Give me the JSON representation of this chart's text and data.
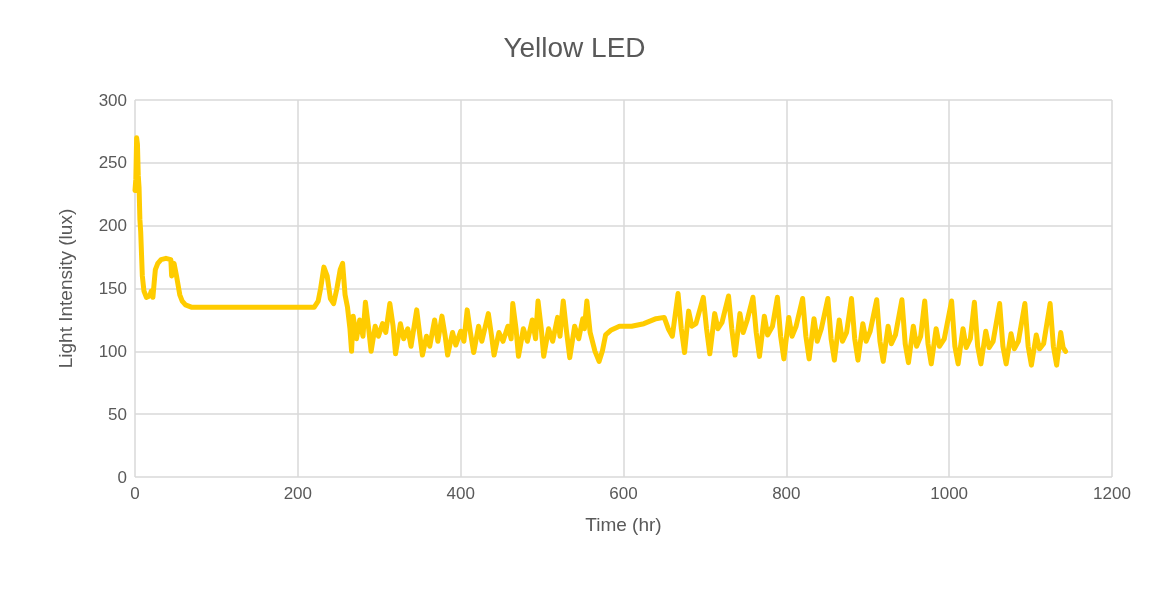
{
  "chart_data": {
    "type": "line",
    "title": "Yellow LED",
    "xlabel": "Time (hr)",
    "ylabel": "Light Intensity (lux)",
    "x": [
      0,
      1,
      2,
      3,
      4,
      5,
      6,
      7,
      9,
      11,
      14,
      18,
      20,
      22,
      24,
      25,
      28,
      32,
      38,
      44,
      45,
      48,
      51,
      55,
      58,
      62,
      70,
      220,
      225,
      228,
      232,
      236,
      240,
      244,
      248,
      252,
      255,
      258,
      261,
      264,
      266,
      268,
      272,
      276,
      280,
      283,
      287,
      290,
      295,
      299,
      304,
      308,
      313,
      317,
      320,
      326,
      330,
      335,
      339,
      346,
      350,
      353,
      358,
      362,
      368,
      372,
      377,
      381,
      384,
      390,
      394,
      400,
      404,
      408,
      412,
      416,
      422,
      426,
      434,
      438,
      441,
      447,
      452,
      458,
      462,
      464,
      468,
      471,
      477,
      482,
      488,
      492,
      495,
      499,
      502,
      508,
      513,
      519,
      522,
      526,
      530,
      534,
      540,
      545,
      550,
      552,
      555,
      559,
      565,
      570,
      574,
      578,
      585,
      595,
      610,
      625,
      640,
      650,
      655,
      660,
      667,
      671,
      675,
      680,
      684,
      689,
      698,
      702,
      706,
      712,
      716,
      721,
      729,
      733,
      737,
      743,
      747,
      752,
      759,
      763,
      767,
      773,
      777,
      783,
      789,
      793,
      797,
      803,
      807,
      812,
      820,
      824,
      828,
      834,
      838,
      843,
      851,
      855,
      859,
      865,
      869,
      874,
      880,
      884,
      888,
      894,
      898,
      903,
      911,
      915,
      919,
      925,
      929,
      934,
      942,
      946,
      950,
      956,
      960,
      965,
      970,
      974,
      978,
      984,
      988,
      994,
      1003,
      1007,
      1011,
      1017,
      1021,
      1026,
      1031,
      1035,
      1039,
      1045,
      1049,
      1054,
      1062,
      1066,
      1070,
      1076,
      1080,
      1085,
      1093,
      1097,
      1101,
      1107,
      1111,
      1116,
      1124,
      1128,
      1132,
      1137,
      1140,
      1143
    ],
    "series": [
      {
        "color": "#ffcc00",
        "values": [
          228,
          237,
          270,
          265,
          240,
          230,
          205,
          195,
          160,
          148,
          143,
          144,
          148,
          143,
          158,
          165,
          170,
          173,
          174,
          173,
          160,
          170,
          160,
          145,
          140,
          137,
          135,
          135,
          140,
          150,
          167,
          160,
          142,
          138,
          150,
          165,
          170,
          145,
          135,
          118,
          100,
          128,
          110,
          125,
          112,
          139,
          118,
          100,
          120,
          112,
          122,
          115,
          138,
          120,
          98,
          122,
          110,
          118,
          104,
          133,
          112,
          97,
          112,
          104,
          125,
          108,
          128,
          112,
          97,
          115,
          105,
          116,
          108,
          133,
          115,
          99,
          120,
          108,
          130,
          112,
          97,
          115,
          108,
          120,
          110,
          138,
          118,
          96,
          118,
          108,
          125,
          110,
          140,
          118,
          96,
          118,
          108,
          127,
          112,
          140,
          116,
          95,
          120,
          110,
          126,
          118,
          140,
          115,
          100,
          92,
          100,
          113,
          117,
          120,
          120,
          122,
          126,
          127,
          118,
          112,
          146,
          118,
          99,
          132,
          120,
          122,
          143,
          118,
          98,
          130,
          118,
          123,
          144,
          118,
          97,
          130,
          115,
          125,
          143,
          115,
          96,
          128,
          113,
          120,
          143,
          112,
          94,
          127,
          112,
          120,
          142,
          112,
          94,
          126,
          108,
          118,
          142,
          110,
          93,
          125,
          108,
          115,
          142,
          110,
          93,
          122,
          108,
          116,
          141,
          108,
          92,
          120,
          106,
          113,
          141,
          106,
          91,
          120,
          104,
          112,
          140,
          106,
          90,
          118,
          104,
          110,
          140,
          104,
          90,
          118,
          103,
          110,
          139,
          104,
          90,
          116,
          103,
          108,
          138,
          104,
          90,
          114,
          102,
          108,
          138,
          104,
          89,
          113,
          102,
          106,
          138,
          104,
          89,
          115,
          103,
          100
        ]
      }
    ],
    "xlim": [
      0,
      1200
    ],
    "xticks": [
      0,
      200,
      400,
      600,
      800,
      1000,
      1200
    ],
    "ylim": [
      0,
      300
    ],
    "yticks": [
      0,
      50,
      100,
      150,
      200,
      250,
      300
    ],
    "grid": true,
    "marker": "none",
    "line_style": "solid"
  }
}
